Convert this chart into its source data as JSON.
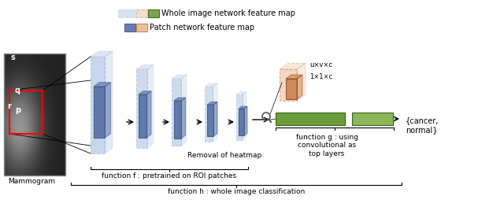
{
  "bg_color": "#ffffff",
  "mammogram_label": "Mammogram",
  "function_f_label": "function f : pretrained on ROI patches",
  "function_h_label": "function h : whole image classification",
  "function_g_label": "function g : using\nconvolutional as\ntop layers",
  "removal_label": "Removal of heatmap",
  "uxvxc_label": "u×v×c",
  "one_label": "1×1×c",
  "output_label": "{cancer,\nnormal}",
  "legend_row1_label": "Whole image network feature map",
  "legend_row2_label": "Patch network feature map",
  "blue_dark": "#5570a8",
  "blue_light": "#adc4e0",
  "dashed_blue": "#90b0d8",
  "orange_light": "#e8b48a",
  "orange_dark": "#c87840",
  "green_dark": "#6a9e3c",
  "green_light": "#8ab858",
  "edge_blue": "#3a5a8a",
  "edge_green": "#3a6010",
  "edge_orange": "#8a4010"
}
